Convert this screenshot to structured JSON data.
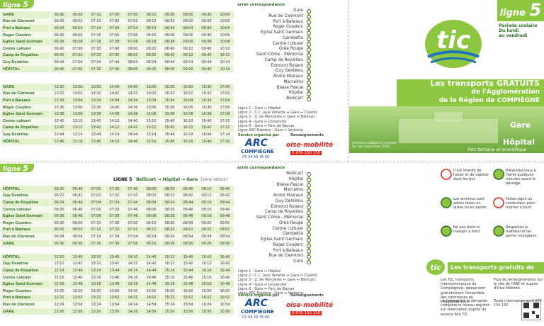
{
  "top_timetable": {
    "tab": "ligne",
    "number": "5",
    "stops": [
      "GARE",
      "Rue de Clermont",
      "Port à Bateaux",
      "Roger Couderc",
      "Eglise Saint Germain",
      "Centre culturel",
      "Camp de Royallieu",
      "Guy Deniélou",
      "HÔPITAL"
    ],
    "blocks": [
      {
        "times": [
          [
            "06:30",
            "06:50",
            "07:10",
            "07:30",
            "07:50",
            "08:10",
            "08:30",
            "09:00",
            "09:30",
            "10:00"
          ],
          [
            "06:32",
            "06:52",
            "07:12",
            "07:32",
            "07:52",
            "08:12",
            "08:32",
            "09:02",
            "09:32",
            "10:02"
          ],
          [
            "06:34",
            "06:54",
            "07:14",
            "07:34",
            "07:54",
            "08:14",
            "08:34",
            "09:04",
            "09:34",
            "10:04"
          ],
          [
            "06:36",
            "06:56",
            "07:16",
            "07:36",
            "07:56",
            "08:16",
            "08:36",
            "09:06",
            "09:36",
            "10:06"
          ],
          [
            "06:38",
            "06:58",
            "07:18",
            "07:38",
            "07:58",
            "08:18",
            "08:38",
            "09:08",
            "09:38",
            "10:08"
          ],
          [
            "06:40",
            "07:00",
            "07:20",
            "07:40",
            "08:00",
            "08:20",
            "08:40",
            "09:10",
            "09:40",
            "10:10"
          ],
          [
            "06:42",
            "07:02",
            "07:22",
            "07:42",
            "08:02",
            "08:22",
            "08:42",
            "09:12",
            "09:42",
            "10:12"
          ],
          [
            "06:44",
            "07:04",
            "07:24",
            "07:44",
            "08:04",
            "08:24",
            "08:44",
            "09:14",
            "09:44",
            "10:14"
          ],
          [
            "06:46",
            "07:06",
            "07:26",
            "07:46",
            "08:06",
            "08:26",
            "08:46",
            "09:16",
            "09:46",
            "10:16"
          ]
        ]
      },
      {
        "times": [
          [
            "12:30",
            "13:00",
            "13:30",
            "14:00",
            "14:30",
            "15:00",
            "15:30",
            "16:00",
            "16:30",
            "17:00"
          ],
          [
            "12:32",
            "13:02",
            "13:32",
            "14:02",
            "14:32",
            "15:02",
            "15:32",
            "16:02",
            "16:32",
            "17:02"
          ],
          [
            "12:34",
            "13:04",
            "13:34",
            "14:04",
            "14:34",
            "15:04",
            "15:34",
            "16:04",
            "16:34",
            "17:04"
          ],
          [
            "12:36",
            "13:06",
            "13:36",
            "14:06",
            "14:36",
            "15:06",
            "15:36",
            "16:06",
            "16:36",
            "17:06"
          ],
          [
            "12:38",
            "13:08",
            "13:38",
            "14:08",
            "14:38",
            "15:08",
            "15:38",
            "16:08",
            "16:38",
            "17:08"
          ],
          [
            "12:40",
            "13:10",
            "13:40",
            "14:10",
            "14:40",
            "15:10",
            "15:40",
            "16:10",
            "16:40",
            "17:10"
          ],
          [
            "12:42",
            "13:12",
            "13:42",
            "14:12",
            "14:42",
            "15:12",
            "15:42",
            "16:12",
            "16:42",
            "17:12"
          ],
          [
            "12:44",
            "13:14",
            "13:44",
            "14:14",
            "14:44",
            "15:14",
            "15:44",
            "16:14",
            "16:44",
            "17:14"
          ],
          [
            "12:46",
            "13:16",
            "13:46",
            "14:16",
            "14:46",
            "15:16",
            "15:46",
            "16:16",
            "16:46",
            "17:16"
          ]
        ]
      }
    ]
  },
  "bottom_timetable": {
    "tab": "ligne",
    "number": "5",
    "heading": "LIGNE 5",
    "route": "Bellicart → Hôpital → Gare",
    "note": "(sens retour)",
    "stops": [
      "HÔPITAL",
      "Guy Deniélou",
      "Camp de Royallieu",
      "Centre culturel",
      "Eglise Saint Germain",
      "Roger Couderc",
      "Port à Bateaux",
      "Rue de Clermont",
      "GARE"
    ],
    "blocks": [
      {
        "times": [
          [
            "06:20",
            "06:40",
            "07:00",
            "07:20",
            "07:40",
            "08:00",
            "08:20",
            "08:40",
            "09:10",
            "09:40"
          ],
          [
            "06:22",
            "06:42",
            "07:02",
            "07:22",
            "07:42",
            "08:02",
            "08:22",
            "08:42",
            "09:12",
            "09:42"
          ],
          [
            "06:24",
            "06:44",
            "07:04",
            "07:24",
            "07:44",
            "08:04",
            "08:24",
            "08:44",
            "09:14",
            "09:44"
          ],
          [
            "06:26",
            "06:46",
            "07:06",
            "07:26",
            "07:46",
            "08:06",
            "08:26",
            "08:46",
            "09:16",
            "09:46"
          ],
          [
            "06:28",
            "06:48",
            "07:08",
            "07:28",
            "07:48",
            "08:08",
            "08:28",
            "08:48",
            "09:18",
            "09:48"
          ],
          [
            "06:30",
            "06:50",
            "07:10",
            "07:30",
            "07:50",
            "08:10",
            "08:30",
            "08:50",
            "09:20",
            "09:50"
          ],
          [
            "06:32",
            "06:52",
            "07:12",
            "07:32",
            "07:52",
            "08:12",
            "08:32",
            "08:52",
            "09:22",
            "09:52"
          ],
          [
            "06:34",
            "06:54",
            "07:14",
            "07:34",
            "07:54",
            "08:14",
            "08:34",
            "08:54",
            "09:24",
            "09:54"
          ],
          [
            "06:36",
            "06:56",
            "07:16",
            "07:36",
            "07:56",
            "08:16",
            "08:36",
            "08:56",
            "09:26",
            "09:56"
          ]
        ]
      },
      {
        "times": [
          [
            "12:10",
            "12:40",
            "13:10",
            "13:40",
            "14:10",
            "14:40",
            "15:10",
            "15:40",
            "16:10",
            "16:40"
          ],
          [
            "12:12",
            "12:42",
            "13:12",
            "13:42",
            "14:12",
            "14:42",
            "15:12",
            "15:42",
            "16:12",
            "16:42"
          ],
          [
            "12:14",
            "12:44",
            "13:14",
            "13:44",
            "14:14",
            "14:44",
            "15:14",
            "15:44",
            "16:14",
            "16:44"
          ],
          [
            "12:16",
            "12:46",
            "13:16",
            "13:46",
            "14:16",
            "14:46",
            "15:16",
            "15:46",
            "16:16",
            "16:46"
          ],
          [
            "12:18",
            "12:48",
            "13:18",
            "13:48",
            "14:18",
            "14:48",
            "15:18",
            "15:48",
            "16:18",
            "16:48"
          ],
          [
            "12:20",
            "12:50",
            "13:20",
            "13:50",
            "14:20",
            "14:50",
            "15:20",
            "15:50",
            "16:20",
            "16:50"
          ],
          [
            "12:22",
            "12:52",
            "13:22",
            "13:52",
            "14:22",
            "14:52",
            "15:22",
            "15:52",
            "16:22",
            "16:52"
          ],
          [
            "12:24",
            "12:54",
            "13:24",
            "13:54",
            "14:24",
            "14:54",
            "15:24",
            "15:54",
            "16:24",
            "16:54"
          ],
          [
            "12:26",
            "12:56",
            "13:26",
            "13:56",
            "14:26",
            "14:56",
            "15:26",
            "15:56",
            "16:26",
            "16:56"
          ]
        ]
      }
    ]
  },
  "route_top": {
    "header": "arrêt  correspondance",
    "stops": [
      "Gare",
      "Rue de Clermont",
      "Port à Bateaux",
      "Roger Couderc",
      "Eglise Saint Germain",
      "Gambetta",
      "Centre culturel",
      "Orée Rouge",
      "Saint Côme - Mémorial",
      "Camp de Royallieu",
      "Edmond Roland",
      "Guy Deniélou",
      "André Malraux",
      "Marcelins",
      "Blaise Pascal",
      "Hôpital",
      "Bellicart"
    ]
  },
  "route_bottom": {
    "header": "arrêt  correspondance",
    "stops": [
      "Bellicart",
      "Hôpital",
      "Blaise Pascal",
      "Marcelins",
      "André Malraux",
      "Guy Deniélou",
      "Edmond Roland",
      "Camp de Royallieu",
      "Saint Côme - Mémorial",
      "Orée Rouge",
      "Centre culturel",
      "Gambetta",
      "Eglise Saint Germain",
      "Roger Couderc",
      "Port à Bateaux",
      "Rue de Clermont",
      "Gare"
    ]
  },
  "legend": [
    "Ligne 1 - Gare ↔ Hôpital",
    "Ligne 2 - C.C. Jaux Venette ↔ Gare ↔ Clairoix",
    "Ligne 3 - Z. de Mercières ↔ Gare ↔ Bellicart",
    "Ligne 4 - Gare ↔ Université",
    "Ligne 6 - Gare ↔ Parc de Bayser",
    "Ligne ARC Express - Gare ↔ Verberie"
  ],
  "organizer": {
    "label": "Service organisé par",
    "arc": "ARC",
    "arc_sub": "COMPIÈGNE",
    "phone": "03 44 40 76 00",
    "info": "Renseignements",
    "oise": "oise-mobilité",
    "oise_phone": "0 970 150 150"
  },
  "cover": {
    "tab": "ligne",
    "number": "5",
    "period": [
      "Période scolaire",
      "Du lundi",
      "au vendredi"
    ],
    "brand": "tic",
    "headline": [
      "Les transports GRATUITS",
      "de l'Agglomération",
      "de la Région de COMPIÈGNE"
    ],
    "from": "Gare",
    "to": "Hôpital",
    "to_sub": "Parc tertiaire et scientifique",
    "validity": "Horaires valables à compter du 1er septembre 2022"
  },
  "rules": [
    "Il est interdit de fumer et de vapoter dans les bus",
    "Présentez-vous à l'arrêt quelques minutes avant le passage",
    "Les animaux sont admis tenus en laisse ou en panier",
    "Faites signe au conducteur pour monter à bord",
    "Ne pas boire ni manger à bord",
    "Respectez le matériel et les autres voyageurs"
  ],
  "info": {
    "title": "Les transports gratuits de l'ARC",
    "paragraphs": [
      "Les TIC, transports intercommunaux du Compiégnois, desservent gratuitement l'ensemble des communes de l'Agglomération.",
      "Le transport à la demande complète le réseau régulier sur réservation auprès du service Allo TIC.",
      "Plus de renseignements sur le site de l'ARC et auprès d'Oise Mobilité.",
      "Toute information au 0 970 150 150"
    ]
  }
}
